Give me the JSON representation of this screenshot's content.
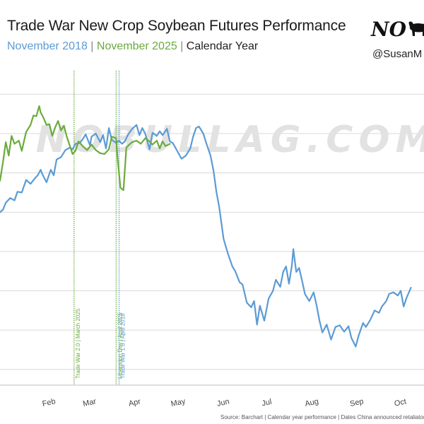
{
  "header": {
    "title": "Trade War New Crop Soybean Futures Performance",
    "subtitle_a": "November 2018",
    "separator": " | ",
    "subtitle_b": "November 2025",
    "subtitle_c": "Calendar Year",
    "logo_text": "NO",
    "handle": "@SusanM"
  },
  "watermark": "NOBULLAG.COM",
  "source": "Source: Barchart | Calendar year performance | Dates China announced retaliatory tariffs",
  "chart_data": {
    "type": "line",
    "x_unit": "calendar day",
    "xlim": [
      "Jan 12",
      "Oct 31"
    ],
    "x_tick_labels": [
      "Feb",
      "Mar",
      "Apr",
      "May",
      "Jun",
      "Jul",
      "Aug",
      "Sep",
      "Oct"
    ],
    "gridlines": "horizontal",
    "series": [
      {
        "name": "November 2018",
        "color": "#5b9bd5",
        "points": [
          [
            "Jan 12",
            0.0
          ],
          [
            "Jan 14",
            0.3
          ],
          [
            "Jan 16",
            1.2
          ],
          [
            "Jan 19",
            1.8
          ],
          [
            "Jan 22",
            1.5
          ],
          [
            "Jan 24",
            2.6
          ],
          [
            "Jan 27",
            2.5
          ],
          [
            "Jan 30",
            4.1
          ],
          [
            "Feb 2",
            3.6
          ],
          [
            "Feb 5",
            4.3
          ],
          [
            "Feb 7",
            4.7
          ],
          [
            "Feb 9",
            5.4
          ],
          [
            "Feb 10",
            4.9
          ],
          [
            "Feb 13",
            3.8
          ],
          [
            "Feb 16",
            5.4
          ],
          [
            "Feb 18",
            4.7
          ],
          [
            "Feb 20",
            6.7
          ],
          [
            "Feb 23",
            7.0
          ],
          [
            "Feb 26",
            7.9
          ],
          [
            "Mar 1",
            8.2
          ],
          [
            "Mar 3",
            8.0
          ],
          [
            "Mar 5",
            8.7
          ],
          [
            "Mar 8",
            8.8
          ],
          [
            "Mar 10",
            9.3
          ],
          [
            "Mar 12",
            9.9
          ],
          [
            "Mar 15",
            8.5
          ],
          [
            "Mar 16",
            9.6
          ],
          [
            "Mar 19",
            10.0
          ],
          [
            "Mar 22",
            8.9
          ],
          [
            "Mar 24",
            9.8
          ],
          [
            "Mar 26",
            8.1
          ],
          [
            "Mar 28",
            10.7
          ],
          [
            "Mar 30",
            9.2
          ],
          [
            "Apr 2",
            8.8
          ],
          [
            "Apr 4",
            9.1
          ],
          [
            "Apr 6",
            8.7
          ],
          [
            "Apr 8",
            9.0
          ],
          [
            "Apr 10",
            9.8
          ],
          [
            "Apr 13",
            10.6
          ],
          [
            "Apr 16",
            11.1
          ],
          [
            "Apr 18",
            9.8
          ],
          [
            "Apr 20",
            10.7
          ],
          [
            "Apr 22",
            10.0
          ],
          [
            "Apr 25",
            8.0
          ],
          [
            "Apr 27",
            10.1
          ],
          [
            "Apr 30",
            9.7
          ],
          [
            "May 2",
            10.3
          ],
          [
            "May 4",
            9.8
          ],
          [
            "May 7",
            10.6
          ],
          [
            "May 9",
            9.0
          ],
          [
            "May 11",
            8.8
          ],
          [
            "May 14",
            7.8
          ],
          [
            "May 17",
            6.8
          ],
          [
            "May 20",
            7.2
          ],
          [
            "May 23",
            8.1
          ],
          [
            "May 25",
            9.6
          ],
          [
            "May 27",
            10.7
          ],
          [
            "May 29",
            10.9
          ],
          [
            "Jun 1",
            10.0
          ],
          [
            "Jun 3",
            8.8
          ],
          [
            "Jun 6",
            7.2
          ],
          [
            "Jun 8",
            5.3
          ],
          [
            "Jun 10",
            2.6
          ],
          [
            "Jun 12",
            0.6
          ],
          [
            "Jun 15",
            -3.4
          ],
          [
            "Jun 18",
            -5.3
          ],
          [
            "Jun 21",
            -6.9
          ],
          [
            "Jun 23",
            -7.5
          ],
          [
            "Jun 26",
            -8.9
          ],
          [
            "Jun 28",
            -9.2
          ],
          [
            "Jul 1",
            -11.5
          ],
          [
            "Jul 4",
            -12.1
          ],
          [
            "Jul 6",
            -11.3
          ],
          [
            "Jul 8",
            -14.3
          ],
          [
            "Jul 10",
            -11.9
          ],
          [
            "Jul 13",
            -13.8
          ],
          [
            "Jul 16",
            -11.0
          ],
          [
            "Jul 19",
            -10.0
          ],
          [
            "Jul 21",
            -8.6
          ],
          [
            "Jul 24",
            -9.5
          ],
          [
            "Jul 26",
            -7.6
          ],
          [
            "Jul 28",
            -6.9
          ],
          [
            "Jul 30",
            -9.1
          ],
          [
            "Aug 1",
            -6.8
          ],
          [
            "Aug 2",
            -4.7
          ],
          [
            "Aug 4",
            -7.6
          ],
          [
            "Aug 6",
            -7.1
          ],
          [
            "Aug 8",
            -8.7
          ],
          [
            "Aug 10",
            -10.4
          ],
          [
            "Aug 13",
            -11.3
          ],
          [
            "Aug 16",
            -10.2
          ],
          [
            "Aug 18",
            -11.8
          ],
          [
            "Aug 20",
            -13.8
          ],
          [
            "Aug 22",
            -15.3
          ],
          [
            "Aug 25",
            -14.3
          ],
          [
            "Aug 28",
            -16.2
          ],
          [
            "Aug 31",
            -14.6
          ],
          [
            "Sep 3",
            -14.4
          ],
          [
            "Sep 6",
            -15.2
          ],
          [
            "Sep 9",
            -14.5
          ],
          [
            "Sep 11",
            -16.0
          ],
          [
            "Sep 14",
            -17.1
          ],
          [
            "Sep 16",
            -15.7
          ],
          [
            "Sep 19",
            -14.1
          ],
          [
            "Sep 21",
            -14.6
          ],
          [
            "Sep 24",
            -13.7
          ],
          [
            "Sep 27",
            -12.5
          ],
          [
            "Sep 30",
            -12.8
          ],
          [
            "Oct 2",
            -12.0
          ],
          [
            "Oct 5",
            -11.3
          ],
          [
            "Oct 7",
            -10.4
          ],
          [
            "Oct 10",
            -10.2
          ],
          [
            "Oct 13",
            -10.6
          ],
          [
            "Oct 15",
            -10.0
          ],
          [
            "Oct 17",
            -12.0
          ],
          [
            "Oct 19",
            -10.9
          ],
          [
            "Oct 22",
            -9.6
          ]
        ]
      },
      {
        "name": "November 2025",
        "color": "#6aab3b",
        "points": [
          [
            "Jan 12",
            4.0
          ],
          [
            "Jan 14",
            6.3
          ],
          [
            "Jan 16",
            8.9
          ],
          [
            "Jan 18",
            7.2
          ],
          [
            "Jan 20",
            9.7
          ],
          [
            "Jan 22",
            8.7
          ],
          [
            "Jan 25",
            9.1
          ],
          [
            "Jan 27",
            7.8
          ],
          [
            "Jan 30",
            10.2
          ],
          [
            "Feb 2",
            11.1
          ],
          [
            "Feb 4",
            12.3
          ],
          [
            "Feb 6",
            12.2
          ],
          [
            "Feb 8",
            13.5
          ],
          [
            "Feb 9",
            12.7
          ],
          [
            "Feb 11",
            12.0
          ],
          [
            "Feb 13",
            11.1
          ],
          [
            "Feb 15",
            11.2
          ],
          [
            "Feb 17",
            9.7
          ],
          [
            "Feb 19",
            10.8
          ],
          [
            "Feb 21",
            11.6
          ],
          [
            "Feb 23",
            10.4
          ],
          [
            "Feb 25",
            11.0
          ],
          [
            "Feb 27",
            9.6
          ],
          [
            "Mar 1",
            8.5
          ],
          [
            "Mar 3",
            7.4
          ],
          [
            "Mar 5",
            7.8
          ],
          [
            "Mar 7",
            9.0
          ],
          [
            "Mar 10",
            8.4
          ],
          [
            "Mar 13",
            7.9
          ],
          [
            "Mar 16",
            8.6
          ],
          [
            "Mar 19",
            7.9
          ],
          [
            "Mar 22",
            7.5
          ],
          [
            "Mar 25",
            7.4
          ],
          [
            "Mar 28",
            8.0
          ],
          [
            "Mar 30",
            9.6
          ],
          [
            "Apr 2",
            9.4
          ],
          [
            "Apr 3",
            6.8
          ],
          [
            "Apr 5",
            3.1
          ],
          [
            "Apr 7",
            2.8
          ],
          [
            "Apr 9",
            8.2
          ],
          [
            "Apr 11",
            8.6
          ],
          [
            "Apr 13",
            8.9
          ],
          [
            "Apr 16",
            9.1
          ],
          [
            "Apr 19",
            8.7
          ],
          [
            "Apr 22",
            9.4
          ],
          [
            "Apr 25",
            9.0
          ],
          [
            "Apr 27",
            8.6
          ],
          [
            "Apr 30",
            9.1
          ],
          [
            "May 2",
            8.1
          ],
          [
            "May 4",
            9.0
          ],
          [
            "May 6",
            8.4
          ],
          [
            "May 9",
            8.7
          ]
        ]
      }
    ],
    "annotations": [
      {
        "label": "Trade War 2.0 | March 2025",
        "date": "Mar 4",
        "color": "#6aab3b"
      },
      {
        "label": "Liberation Day | April 2025",
        "date": "Apr 2",
        "color": "#6aab3b"
      },
      {
        "label": "Trade War 1.0 | April 2018",
        "date": "Apr 4",
        "color": "#5b9bd5"
      }
    ]
  }
}
